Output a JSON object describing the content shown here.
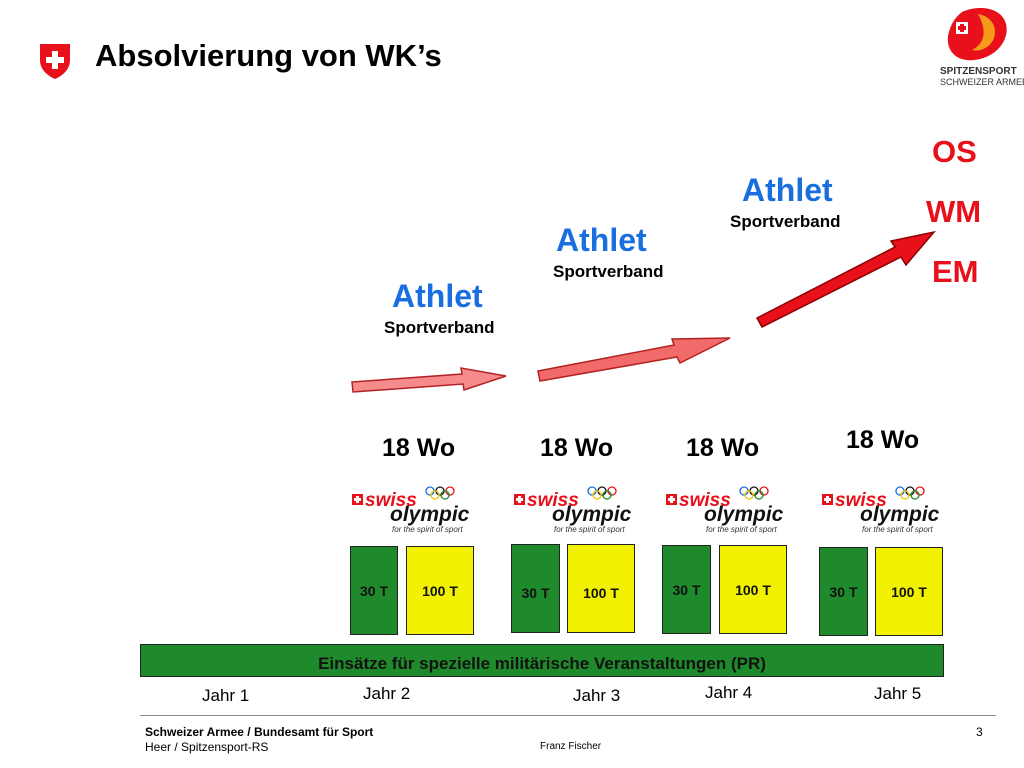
{
  "title": "Absolvierung von WK’s",
  "brand": {
    "line1": "SPITZENSPORT",
    "line2": "SCHWEIZER ARMEE"
  },
  "athletes": [
    {
      "label": "Athlet",
      "sub": "Sportverband"
    },
    {
      "label": "Athlet",
      "sub": "Sportverband"
    },
    {
      "label": "Athlet",
      "sub": "Sportverband"
    }
  ],
  "events": [
    "OS",
    "WM",
    "EM"
  ],
  "blocks": [
    {
      "weeks": "18 Wo",
      "short": "30 T",
      "long": "100 T"
    },
    {
      "weeks": "18 Wo",
      "short": "30 T",
      "long": "100 T"
    },
    {
      "weeks": "18 Wo",
      "short": "30 T",
      "long": "100 T"
    },
    {
      "weeks": "18 Wo",
      "short": "30 T",
      "long": "100 T"
    }
  ],
  "logo": {
    "swiss": "swiss",
    "olympic": "olympic",
    "tag": "for the spirit of sport"
  },
  "military_bar": "Einsätze für spezielle militärische Veranstaltungen (PR)",
  "years": [
    "Jahr 1",
    "Jahr 2",
    "Jahr 3",
    "Jahr 4",
    "Jahr 5"
  ],
  "footer": {
    "org": "Schweizer Armee / Bundesamt für Sport",
    "unit": "Heer / Spitzensport-RS",
    "author": "Franz Fischer",
    "page": "3"
  },
  "colors": {
    "athlete": "#1a6fe0",
    "event": "#e8101a",
    "green": "#1f8a2b",
    "yellow": "#f2f200"
  }
}
